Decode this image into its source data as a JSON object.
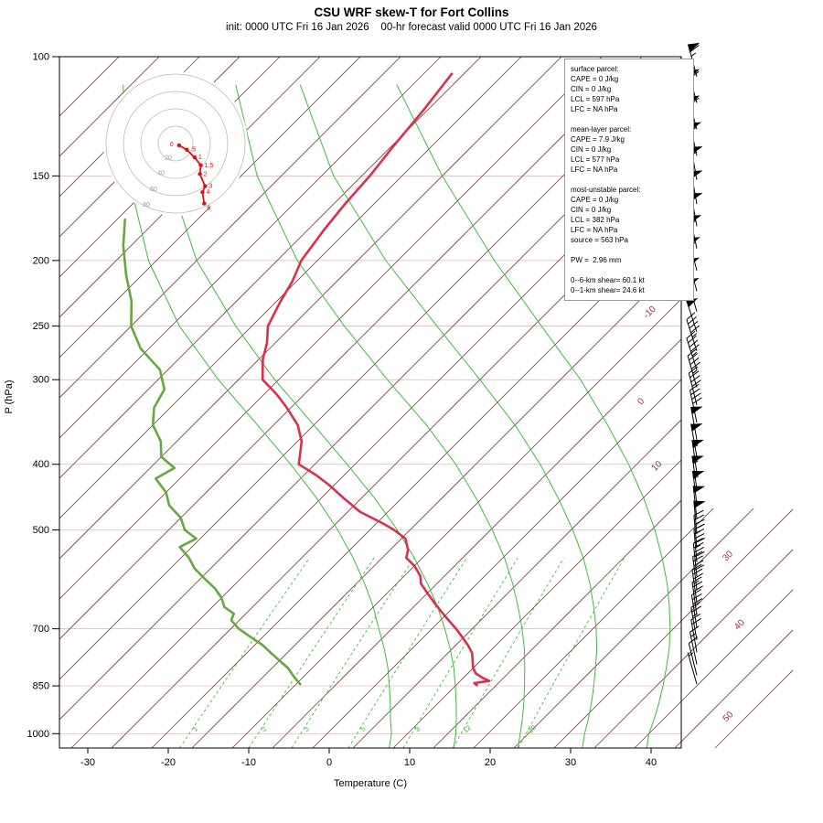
{
  "title": "CSU WRF skew-T for Fort Collins",
  "subtitle": "init: 0000 UTC Fri 16 Jan 2026    00-hr forecast valid 0000 UTC Fri 16 Jan 2026",
  "axes": {
    "x_label": "Temperature (C)",
    "y_label": "P (hPa)",
    "pressure_ticks": [
      100,
      150,
      200,
      250,
      300,
      400,
      500,
      700,
      850,
      1000
    ],
    "temp_ticks": [
      -30,
      -20,
      -10,
      0,
      10,
      20,
      30,
      40
    ]
  },
  "colors": {
    "background": "#ffffff",
    "isotherm": "#993333",
    "gridline": "#cc9999",
    "green_ref": "#3dbd3d",
    "temperature": "#dc2f4c",
    "dewpoint": "#63a840",
    "barb": "#000000",
    "hodo_trace": "#e01010",
    "hodo_ring": "#bbbbbb",
    "hodo_label": "#999999"
  },
  "info_box": {
    "lines": [
      "surface parcel:",
      "CAPE = 0 J/kg",
      "CIN = 0 J/kg",
      "LCL = 597 hPa",
      "LFC = NA hPa",
      "",
      "mean-layer parcel:",
      "CAPE = 7.9 J/kg",
      "CIN = 0 J/kg",
      "LCL = 577 hPa",
      "LFC = NA hPa",
      "",
      "most-unstable parcel:",
      "CAPE = 0 J/kg",
      "CIN = 0 J/kg",
      "LCL = 382 hPa",
      "LFC = NA hPa",
      "source = 563 hPa",
      "",
      "PW =  2.96 mm",
      "",
      "0--6-km shear= 60.1 kt",
      "0--1-km shear= 24.6 kt"
    ]
  },
  "chart_data": {
    "type": "line",
    "variant": "skew-T log-P sounding",
    "title": "CSU WRF skew-T for Fort Collins",
    "xlabel": "Temperature (C)",
    "ylabel": "P (hPa)",
    "xlim": [
      -35,
      45
    ],
    "pressure_range": [
      1050,
      100
    ],
    "pressure_ticks": [
      100,
      150,
      200,
      250,
      300,
      400,
      500,
      700,
      850,
      1000
    ],
    "temp_ticks": [
      -30,
      -20,
      -10,
      0,
      10,
      20,
      30,
      40
    ],
    "isotherms": {
      "start": -110,
      "end": 50,
      "step": 5,
      "labeled": [
        {
          "t": -10,
          "p": 240
        },
        {
          "t": 0,
          "p": 325
        },
        {
          "t": 10,
          "p": 405
        },
        {
          "t": 30,
          "p": 550
        },
        {
          "t": 40,
          "p": 695
        },
        {
          "t": 50,
          "p": 950
        }
      ]
    },
    "mixing_ratio_gkg": [
      1,
      2,
      3,
      5,
      8,
      12,
      20
    ],
    "moist_adiabat_curves": [
      {
        "thetaw": 8,
        "points_p_T": [
          [
            1050,
            9.5
          ],
          [
            1000,
            8
          ],
          [
            950,
            6
          ],
          [
            900,
            4
          ],
          [
            850,
            1.8
          ],
          [
            800,
            -0.6
          ],
          [
            750,
            -3.4
          ],
          [
            700,
            -6.6
          ],
          [
            650,
            -10
          ],
          [
            600,
            -14
          ],
          [
            550,
            -18.6
          ],
          [
            500,
            -24
          ],
          [
            450,
            -30.4
          ],
          [
            400,
            -38
          ],
          [
            350,
            -47
          ],
          [
            300,
            -57.5
          ],
          [
            250,
            -69
          ],
          [
            200,
            -81
          ],
          [
            150,
            -94
          ],
          [
            110,
            -106
          ]
        ]
      },
      {
        "thetaw": 16,
        "points_p_T": [
          [
            1050,
            17.5
          ],
          [
            1000,
            16
          ],
          [
            950,
            14.2
          ],
          [
            900,
            12.2
          ],
          [
            850,
            10
          ],
          [
            800,
            7.6
          ],
          [
            750,
            4.8
          ],
          [
            700,
            1.6
          ],
          [
            650,
            -2
          ],
          [
            600,
            -6.2
          ],
          [
            550,
            -11
          ],
          [
            500,
            -16.6
          ],
          [
            450,
            -23.2
          ],
          [
            400,
            -31
          ],
          [
            350,
            -40
          ],
          [
            300,
            -50.5
          ],
          [
            250,
            -62
          ],
          [
            200,
            -75
          ],
          [
            150,
            -89
          ],
          [
            110,
            -101
          ]
        ]
      },
      {
        "thetaw": 24,
        "points_p_T": [
          [
            1050,
            25.5
          ],
          [
            1000,
            24
          ],
          [
            950,
            22.4
          ],
          [
            900,
            20.6
          ],
          [
            850,
            18.6
          ],
          [
            800,
            16.4
          ],
          [
            750,
            14
          ],
          [
            700,
            11.2
          ],
          [
            650,
            8
          ],
          [
            600,
            4.4
          ],
          [
            550,
            0.2
          ],
          [
            500,
            -4.8
          ],
          [
            450,
            -10.6
          ],
          [
            400,
            -17.5
          ],
          [
            350,
            -26
          ],
          [
            300,
            -36.5
          ],
          [
            250,
            -48.5
          ],
          [
            200,
            -62.5
          ],
          [
            150,
            -78
          ],
          [
            110,
            -92
          ]
        ]
      },
      {
        "thetaw": 32,
        "points_p_T": [
          [
            1050,
            33.5
          ],
          [
            1000,
            32
          ],
          [
            950,
            30.6
          ],
          [
            900,
            29
          ],
          [
            850,
            27.2
          ],
          [
            800,
            25.2
          ],
          [
            750,
            23
          ],
          [
            700,
            20.4
          ],
          [
            650,
            17.4
          ],
          [
            600,
            14
          ],
          [
            550,
            10
          ],
          [
            500,
            5.2
          ],
          [
            450,
            -0.4
          ],
          [
            400,
            -7
          ],
          [
            350,
            -15
          ],
          [
            300,
            -25
          ],
          [
            250,
            -37
          ],
          [
            200,
            -51.5
          ],
          [
            150,
            -68.5
          ],
          [
            110,
            -84
          ]
        ]
      },
      {
        "thetaw": 40,
        "points_p_T": [
          [
            1050,
            41.5
          ],
          [
            1000,
            40
          ],
          [
            950,
            38.8
          ],
          [
            900,
            37.4
          ],
          [
            850,
            35.8
          ],
          [
            800,
            34
          ],
          [
            750,
            32
          ],
          [
            700,
            29.6
          ],
          [
            650,
            26.8
          ],
          [
            600,
            23.6
          ],
          [
            550,
            19.8
          ],
          [
            500,
            15.4
          ],
          [
            450,
            10.2
          ],
          [
            400,
            4
          ],
          [
            350,
            -3.5
          ],
          [
            300,
            -12.5
          ],
          [
            250,
            -24
          ],
          [
            200,
            -38
          ],
          [
            150,
            -55
          ],
          [
            110,
            -72
          ]
        ]
      }
    ],
    "series": [
      {
        "name": "temperature",
        "color": "#dc2f4c",
        "points_p_T": [
          [
            106,
            -66.5
          ],
          [
            120,
            -65.5
          ],
          [
            135,
            -64.8
          ],
          [
            150,
            -64
          ],
          [
            165,
            -63.6
          ],
          [
            180,
            -63
          ],
          [
            200,
            -62
          ],
          [
            215,
            -60.5
          ],
          [
            230,
            -59.5
          ],
          [
            250,
            -58
          ],
          [
            265,
            -56
          ],
          [
            280,
            -54.5
          ],
          [
            300,
            -52
          ],
          [
            315,
            -48.5
          ],
          [
            330,
            -45.5
          ],
          [
            350,
            -42
          ],
          [
            370,
            -39.5
          ],
          [
            390,
            -37.8
          ],
          [
            400,
            -37
          ],
          [
            415,
            -33.5
          ],
          [
            430,
            -30.5
          ],
          [
            450,
            -27
          ],
          [
            470,
            -23.5
          ],
          [
            490,
            -19
          ],
          [
            500,
            -17
          ],
          [
            515,
            -14.5
          ],
          [
            535,
            -12.8
          ],
          [
            550,
            -12
          ],
          [
            565,
            -10
          ],
          [
            585,
            -8
          ],
          [
            600,
            -7
          ],
          [
            620,
            -5
          ],
          [
            640,
            -3
          ],
          [
            660,
            -1
          ],
          [
            680,
            1
          ],
          [
            700,
            3
          ],
          [
            720,
            4.8
          ],
          [
            740,
            6.5
          ],
          [
            760,
            8
          ],
          [
            780,
            9
          ],
          [
            800,
            10
          ],
          [
            815,
            11
          ],
          [
            828,
            12.5
          ],
          [
            836,
            13.6
          ],
          [
            842,
            12.0
          ],
          [
            848,
            12.6
          ]
        ]
      },
      {
        "name": "dewpoint",
        "color": "#63a840",
        "points_p_T": [
          [
            174,
            -89
          ],
          [
            190,
            -86
          ],
          [
            210,
            -82
          ],
          [
            230,
            -78
          ],
          [
            250,
            -75
          ],
          [
            270,
            -71
          ],
          [
            290,
            -66
          ],
          [
            310,
            -63
          ],
          [
            330,
            -62
          ],
          [
            350,
            -60
          ],
          [
            370,
            -57
          ],
          [
            390,
            -55
          ],
          [
            405,
            -52
          ],
          [
            420,
            -53
          ],
          [
            440,
            -50
          ],
          [
            460,
            -48
          ],
          [
            480,
            -45
          ],
          [
            500,
            -43
          ],
          [
            515,
            -40.5
          ],
          [
            530,
            -41.5
          ],
          [
            550,
            -39
          ],
          [
            570,
            -37
          ],
          [
            590,
            -34.5
          ],
          [
            610,
            -32
          ],
          [
            630,
            -30
          ],
          [
            650,
            -28.5
          ],
          [
            665,
            -26.5
          ],
          [
            680,
            -26
          ],
          [
            700,
            -24
          ],
          [
            720,
            -21.5
          ],
          [
            740,
            -19
          ],
          [
            760,
            -17
          ],
          [
            780,
            -15
          ],
          [
            800,
            -13
          ],
          [
            820,
            -11.5
          ],
          [
            835,
            -10.3
          ],
          [
            845,
            -9.5
          ]
        ]
      }
    ],
    "wind_barbs_p_kt_dir": [
      [
        107,
        65,
        345
      ],
      [
        117,
        60,
        345
      ],
      [
        128,
        60,
        345
      ],
      [
        140,
        55,
        348
      ],
      [
        152,
        55,
        350
      ],
      [
        165,
        50,
        350
      ],
      [
        178,
        50,
        350
      ],
      [
        192,
        55,
        348
      ],
      [
        207,
        55,
        346
      ],
      [
        222,
        50,
        345
      ],
      [
        238,
        50,
        344
      ],
      [
        255,
        50,
        342
      ],
      [
        272,
        45,
        342
      ],
      [
        290,
        45,
        342
      ],
      [
        308,
        45,
        344
      ],
      [
        327,
        40,
        346
      ],
      [
        347,
        40,
        348
      ],
      [
        368,
        50,
        350
      ],
      [
        390,
        50,
        350
      ],
      [
        412,
        55,
        352
      ],
      [
        435,
        55,
        352
      ],
      [
        458,
        55,
        353
      ],
      [
        482,
        50,
        354
      ],
      [
        507,
        50,
        355
      ],
      [
        532,
        45,
        355
      ],
      [
        558,
        45,
        355
      ],
      [
        585,
        40,
        354
      ],
      [
        612,
        40,
        353
      ],
      [
        640,
        35,
        352
      ],
      [
        668,
        30,
        352
      ],
      [
        697,
        30,
        351
      ],
      [
        727,
        25,
        350
      ],
      [
        758,
        20,
        350
      ],
      [
        790,
        15,
        348
      ],
      [
        820,
        10,
        346
      ],
      [
        845,
        5,
        344
      ]
    ],
    "hodograph": {
      "ring_interval_kt": 20,
      "rings": [
        20,
        40,
        60,
        80
      ],
      "trace_u_v_kt": [
        [
          4,
          -2
        ],
        [
          13,
          -7
        ],
        [
          22,
          -16
        ],
        [
          29,
          -25
        ],
        [
          28,
          -35
        ],
        [
          34,
          -49
        ],
        [
          31,
          -56
        ],
        [
          33,
          -69
        ]
      ],
      "point_labels_km": [
        "0",
        ".5",
        "1",
        "1.5",
        "2",
        "3",
        "4",
        "6"
      ]
    }
  }
}
